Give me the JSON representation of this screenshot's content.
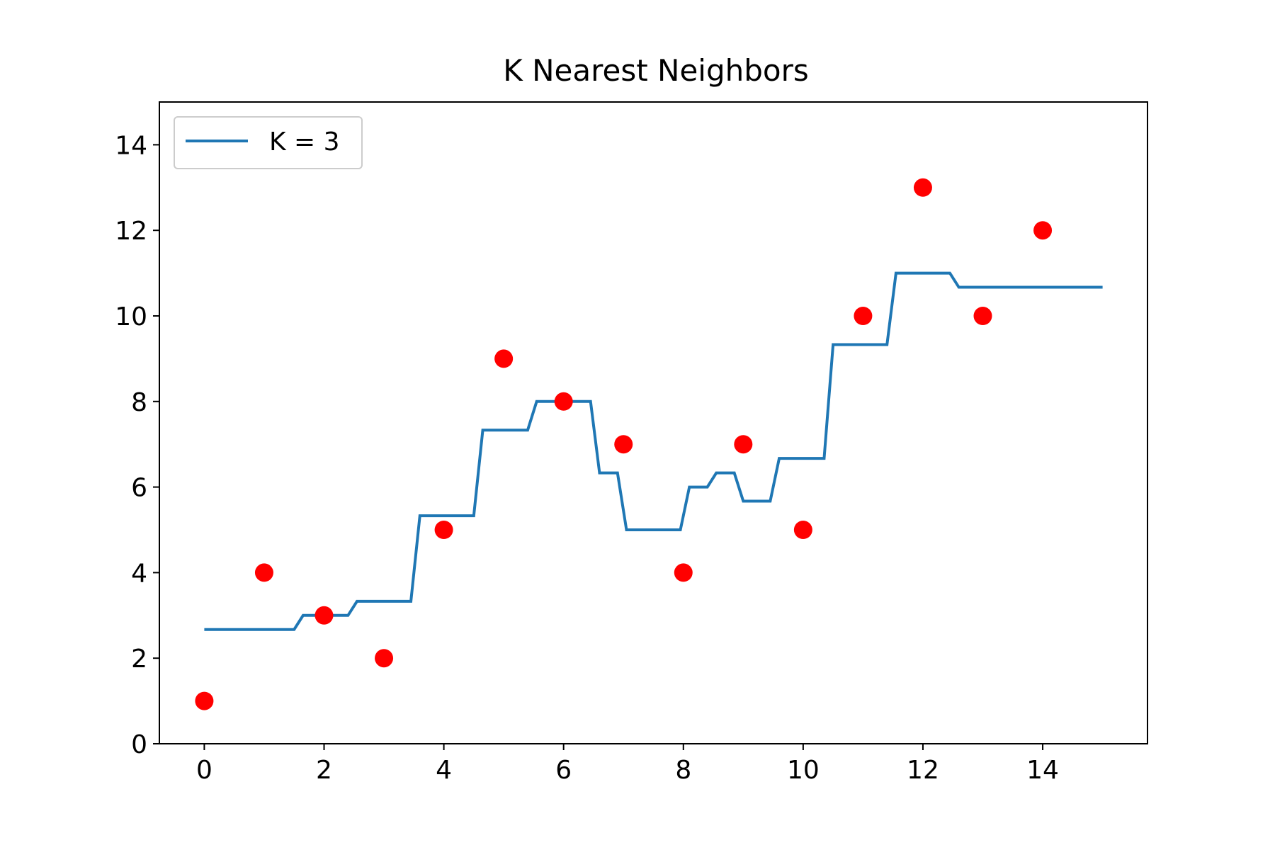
{
  "chart_data": {
    "type": "line",
    "title": "K Nearest Neighbors",
    "xlabel": "",
    "ylabel": "",
    "xlim": [
      -0.75,
      15.75
    ],
    "ylim": [
      0,
      15
    ],
    "xticks": [
      0,
      2,
      4,
      6,
      8,
      10,
      12,
      14
    ],
    "yticks": [
      0,
      2,
      4,
      6,
      8,
      10,
      12,
      14
    ],
    "grid": false,
    "legend": {
      "position": "top-left",
      "entries": [
        "K = 3"
      ]
    },
    "colors": {
      "line": "#1f77b4",
      "points": "#ff0000"
    },
    "scatter": {
      "x": [
        0,
        1,
        2,
        3,
        4,
        5,
        6,
        7,
        8,
        9,
        10,
        11,
        12,
        13,
        14
      ],
      "y": [
        1,
        4,
        3,
        2,
        5,
        9,
        8,
        7,
        4,
        7,
        5,
        10,
        13,
        10,
        12
      ]
    },
    "series": [
      {
        "name": "K = 3",
        "x": [
          0,
          1.5,
          1.65,
          2.4,
          2.55,
          3.45,
          3.6,
          4.5,
          4.65,
          5.4,
          5.55,
          6.45,
          6.6,
          6.9,
          7.05,
          7.95,
          8.1,
          8.4,
          8.55,
          8.85,
          9.0,
          9.45,
          9.6,
          10.35,
          10.5,
          11.4,
          11.55,
          12.45,
          12.6,
          15.0
        ],
        "y": [
          2.67,
          2.67,
          3.0,
          3.0,
          3.33,
          3.33,
          5.33,
          5.33,
          7.33,
          7.33,
          8.0,
          8.0,
          6.33,
          6.33,
          5.0,
          5.0,
          6.0,
          6.0,
          6.33,
          6.33,
          5.67,
          5.67,
          6.67,
          6.67,
          9.33,
          9.33,
          11.0,
          11.0,
          10.67,
          10.67
        ]
      }
    ]
  }
}
